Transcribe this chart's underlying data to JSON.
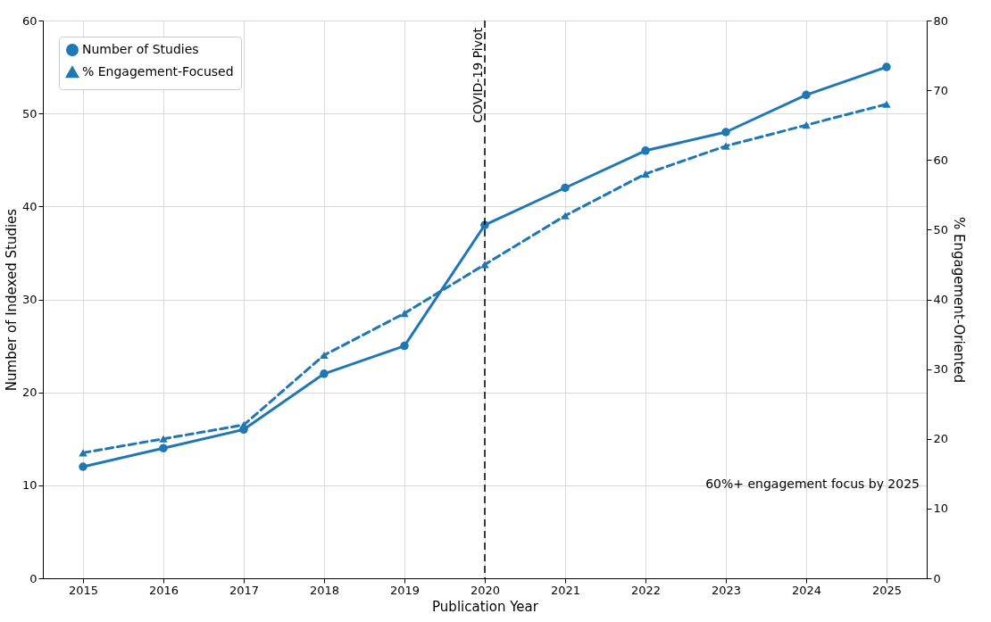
{
  "chart_data": {
    "type": "line",
    "xlabel": "Publication Year",
    "ylabel": "Number of Indexed Studies",
    "y2label": "% Engagement-Oriented",
    "x": [
      2015,
      2016,
      2017,
      2018,
      2019,
      2020,
      2021,
      2022,
      2023,
      2024,
      2025
    ],
    "series": [
      {
        "name": "Number of Studies",
        "color": "#1f77b4",
        "marker": "circle",
        "line_style": "solid",
        "values": [
          12,
          14,
          16,
          22,
          25,
          38,
          42,
          46,
          48,
          52,
          55
        ]
      },
      {
        "name": "% Engagement-Focused",
        "color": "#1f77b4",
        "marker": "triangle",
        "line_style": "dashed",
        "axis": "y2",
        "values": [
          18,
          20,
          22,
          32,
          38,
          45,
          52,
          58,
          62,
          65,
          68
        ]
      }
    ],
    "xlim": [
      2014.5,
      2025.5
    ],
    "xticks": [
      2015,
      2016,
      2017,
      2018,
      2019,
      2020,
      2021,
      2022,
      2023,
      2024,
      2025
    ],
    "ylim": [
      0,
      60
    ],
    "yticks": [
      0,
      10,
      20,
      30,
      40,
      50,
      60
    ],
    "y2lim": [
      0,
      80
    ],
    "y2ticks": [
      0,
      10,
      20,
      30,
      40,
      50,
      60,
      70,
      80
    ],
    "ref_lines": [
      {
        "axis": "x",
        "value": 2020,
        "label": "COVID-19 Pivot",
        "color": "#000000",
        "line_style": "dashed"
      }
    ],
    "annotations": [
      "60%+ engagement focus by 2025"
    ],
    "grid": true,
    "legend": "top left"
  }
}
